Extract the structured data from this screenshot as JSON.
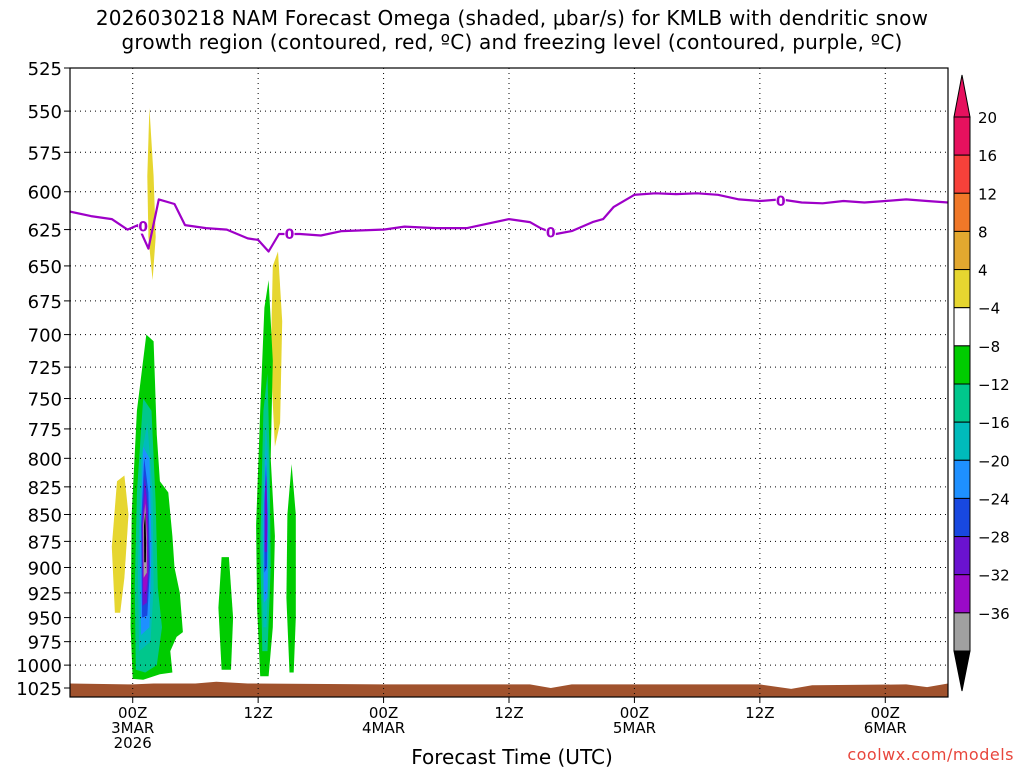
{
  "title": {
    "line1": "2026030218 NAM Forecast Omega (shaded, μbar/s) for KMLB with dendritic snow",
    "line2": "growth region (contoured, red, ºC) and freezing level (contoured, purple, ºC)"
  },
  "credit": "coolwx.com/models",
  "chart_data": {
    "type": "heatmap",
    "title": "2026030218 NAM Forecast Omega (shaded, μbar/s) for KMLB with dendritic snow growth region (contoured, red, ºC) and freezing level (contoured, purple, ºC)",
    "xlabel": "Forecast Time (UTC)",
    "ylabel": "",
    "x_unit": "hours from 2026-03-02 18Z",
    "xlim": [
      0,
      84
    ],
    "ylim": [
      1035,
      525
    ],
    "y_scale": "log-pressure",
    "grid": true,
    "x_ticks": [
      {
        "hour": 6,
        "lines": [
          "00Z",
          "3MAR",
          "2026"
        ]
      },
      {
        "hour": 18,
        "lines": [
          "12Z"
        ]
      },
      {
        "hour": 30,
        "lines": [
          "00Z",
          "4MAR"
        ]
      },
      {
        "hour": 42,
        "lines": [
          "12Z"
        ]
      },
      {
        "hour": 54,
        "lines": [
          "00Z",
          "5MAR"
        ]
      },
      {
        "hour": 66,
        "lines": [
          "12Z"
        ]
      },
      {
        "hour": 78,
        "lines": [
          "00Z",
          "6MAR"
        ]
      }
    ],
    "y_ticks": [
      525,
      550,
      575,
      600,
      625,
      650,
      675,
      700,
      725,
      750,
      775,
      800,
      825,
      850,
      875,
      900,
      925,
      950,
      975,
      1000,
      1025
    ],
    "colorbar": {
      "labels": [
        "20",
        "16",
        "12",
        "8",
        "4",
        "−4",
        "−8",
        "−12",
        "−16",
        "−20",
        "−24",
        "−28",
        "−32",
        "−36"
      ],
      "colors": [
        "#e6115e",
        "#f7413a",
        "#f07828",
        "#e3a82f",
        "#e6d630",
        "#ffffff",
        "#00cc00",
        "#00c78c",
        "#00bbbb",
        "#1e90ff",
        "#1848e0",
        "#6a12d0",
        "#9a0ac8",
        "#a0a0a0"
      ],
      "top_color": "#e6115e",
      "bottom_color": "#000000"
    },
    "freezing_level": {
      "color": "#9e00c8",
      "label": "0",
      "label_points": [
        [
          7,
          623
        ],
        [
          21,
          628
        ],
        [
          46,
          627
        ],
        [
          68,
          606
        ]
      ],
      "points": [
        [
          0,
          613
        ],
        [
          2,
          616
        ],
        [
          4,
          618
        ],
        [
          5.5,
          625
        ],
        [
          6.5,
          622
        ],
        [
          7.5,
          638
        ],
        [
          8.5,
          605
        ],
        [
          10,
          608
        ],
        [
          11,
          622
        ],
        [
          13,
          624
        ],
        [
          15,
          625
        ],
        [
          17,
          631
        ],
        [
          18,
          632
        ],
        [
          19,
          640
        ],
        [
          20,
          628
        ],
        [
          22,
          628
        ],
        [
          24,
          629
        ],
        [
          26,
          626
        ],
        [
          30,
          625
        ],
        [
          32,
          623
        ],
        [
          35,
          624
        ],
        [
          38,
          624
        ],
        [
          40,
          621
        ],
        [
          42,
          618
        ],
        [
          44,
          620
        ],
        [
          45,
          624
        ],
        [
          46.5,
          628
        ],
        [
          48,
          626
        ],
        [
          50,
          620
        ],
        [
          51,
          618
        ],
        [
          52,
          610
        ],
        [
          54,
          602
        ],
        [
          56,
          601
        ],
        [
          58,
          601.5
        ],
        [
          60,
          601
        ],
        [
          62,
          602
        ],
        [
          64,
          605
        ],
        [
          66,
          606
        ],
        [
          68,
          605
        ],
        [
          70,
          607
        ],
        [
          72,
          607.5
        ],
        [
          74,
          606
        ],
        [
          76,
          607
        ],
        [
          78,
          606
        ],
        [
          80,
          605
        ],
        [
          82,
          606
        ],
        [
          84,
          607
        ]
      ]
    },
    "omega_regions": [
      {
        "color": "#e6d630",
        "points": [
          [
            7.6,
            548
          ],
          [
            8.0,
            590
          ],
          [
            8.2,
            630
          ],
          [
            7.9,
            660
          ],
          [
            7.5,
            630
          ],
          [
            7.4,
            590
          ]
        ]
      },
      {
        "color": "#e6d630",
        "points": [
          [
            4.3,
            945
          ],
          [
            4.0,
            880
          ],
          [
            4.5,
            820
          ],
          [
            5.2,
            815
          ],
          [
            5.6,
            850
          ],
          [
            5.2,
            910
          ],
          [
            4.8,
            945
          ]
        ]
      },
      {
        "color": "#e6d630",
        "points": [
          [
            19.6,
            790
          ],
          [
            19.2,
            720
          ],
          [
            19.4,
            650
          ],
          [
            19.9,
            640
          ],
          [
            20.3,
            690
          ],
          [
            20.1,
            770
          ]
        ]
      },
      {
        "color": "#00cc00",
        "points": [
          [
            6.0,
            1015
          ],
          [
            5.8,
            960
          ],
          [
            5.9,
            850
          ],
          [
            6.4,
            760
          ],
          [
            7.3,
            700
          ],
          [
            8.0,
            705
          ],
          [
            8.3,
            780
          ],
          [
            8.6,
            820
          ],
          [
            9.4,
            830
          ],
          [
            9.8,
            870
          ],
          [
            10.0,
            900
          ],
          [
            10.5,
            925
          ],
          [
            10.8,
            965
          ],
          [
            10.2,
            970
          ],
          [
            9.6,
            985
          ],
          [
            9.8,
            1008
          ],
          [
            8.6,
            1010
          ],
          [
            7.0,
            1016
          ]
        ]
      },
      {
        "color": "#00cc00",
        "points": [
          [
            14.5,
            1005
          ],
          [
            14.2,
            940
          ],
          [
            14.5,
            890
          ],
          [
            15.2,
            890
          ],
          [
            15.6,
            950
          ],
          [
            15.4,
            1005
          ]
        ]
      },
      {
        "color": "#00cc00",
        "points": [
          [
            18.2,
            1012
          ],
          [
            17.9,
            940
          ],
          [
            17.8,
            860
          ],
          [
            18.2,
            760
          ],
          [
            18.6,
            680
          ],
          [
            19.0,
            660
          ],
          [
            19.4,
            720
          ],
          [
            19.2,
            800
          ],
          [
            19.6,
            870
          ],
          [
            19.4,
            960
          ],
          [
            19.0,
            1012
          ]
        ]
      },
      {
        "color": "#00cc00",
        "points": [
          [
            21.0,
            1008
          ],
          [
            20.7,
            930
          ],
          [
            20.8,
            850
          ],
          [
            21.2,
            805
          ],
          [
            21.6,
            850
          ],
          [
            21.6,
            950
          ],
          [
            21.4,
            1008
          ]
        ]
      },
      {
        "color": "#00c78c",
        "points": [
          [
            6.3,
            1005
          ],
          [
            6.2,
            920
          ],
          [
            6.4,
            830
          ],
          [
            7.0,
            750
          ],
          [
            7.8,
            760
          ],
          [
            8.2,
            840
          ],
          [
            8.4,
            920
          ],
          [
            8.8,
            960
          ],
          [
            8.3,
            1000
          ],
          [
            7.2,
            1008
          ]
        ]
      },
      {
        "color": "#00c78c",
        "points": [
          [
            18.4,
            985
          ],
          [
            18.2,
            880
          ],
          [
            18.5,
            760
          ],
          [
            18.9,
            730
          ],
          [
            19.1,
            800
          ],
          [
            19.2,
            900
          ],
          [
            18.9,
            985
          ]
        ]
      },
      {
        "color": "#00bbbb",
        "points": [
          [
            6.6,
            985
          ],
          [
            6.5,
            900
          ],
          [
            6.8,
            800
          ],
          [
            7.4,
            770
          ],
          [
            7.9,
            830
          ],
          [
            8.0,
            920
          ],
          [
            7.7,
            975
          ]
        ]
      },
      {
        "color": "#00bbbb",
        "points": [
          [
            18.5,
            960
          ],
          [
            18.4,
            860
          ],
          [
            18.7,
            770
          ],
          [
            19.0,
            800
          ],
          [
            19.0,
            900
          ],
          [
            18.8,
            960
          ]
        ]
      },
      {
        "color": "#1e90ff",
        "points": [
          [
            6.8,
            968
          ],
          [
            6.7,
            880
          ],
          [
            7.0,
            790
          ],
          [
            7.6,
            800
          ],
          [
            7.8,
            880
          ],
          [
            7.6,
            960
          ]
        ]
      },
      {
        "color": "#1e90ff",
        "points": [
          [
            18.55,
            935
          ],
          [
            18.5,
            850
          ],
          [
            18.75,
            790
          ],
          [
            18.95,
            850
          ],
          [
            18.9,
            930
          ]
        ]
      },
      {
        "color": "#1848e0",
        "points": [
          [
            6.9,
            950
          ],
          [
            6.8,
            860
          ],
          [
            7.1,
            800
          ],
          [
            7.5,
            830
          ],
          [
            7.65,
            900
          ],
          [
            7.4,
            948
          ]
        ]
      },
      {
        "color": "#1848e0",
        "points": [
          [
            18.6,
            905
          ],
          [
            18.6,
            840
          ],
          [
            18.75,
            805
          ],
          [
            18.9,
            850
          ],
          [
            18.85,
            900
          ]
        ]
      },
      {
        "color": "#6a12d0",
        "points": [
          [
            6.95,
            938
          ],
          [
            6.9,
            860
          ],
          [
            7.15,
            815
          ],
          [
            7.45,
            845
          ],
          [
            7.55,
            900
          ],
          [
            7.35,
            935
          ]
        ]
      },
      {
        "color": "#6a12d0",
        "points": [
          [
            18.62,
            885
          ],
          [
            18.65,
            830
          ],
          [
            18.8,
            815
          ],
          [
            18.88,
            860
          ],
          [
            18.82,
            885
          ]
        ]
      },
      {
        "color": "#9a0ac8",
        "points": [
          [
            7.0,
            925
          ],
          [
            6.95,
            860
          ],
          [
            7.2,
            830
          ],
          [
            7.4,
            860
          ],
          [
            7.45,
            905
          ],
          [
            7.3,
            922
          ]
        ]
      },
      {
        "color": "#a0a0a0",
        "points": [
          [
            7.05,
            910
          ],
          [
            7.0,
            860
          ],
          [
            7.2,
            840
          ],
          [
            7.35,
            870
          ],
          [
            7.35,
            905
          ]
        ]
      },
      {
        "color": "#000000",
        "points": [
          [
            7.1,
            895
          ],
          [
            7.08,
            860
          ],
          [
            7.2,
            848
          ],
          [
            7.28,
            875
          ],
          [
            7.26,
            895
          ]
        ]
      }
    ],
    "terrain": {
      "color": "#a0522d",
      "points": [
        [
          0,
          1020
        ],
        [
          6,
          1021
        ],
        [
          8,
          1020
        ],
        [
          12,
          1020
        ],
        [
          14,
          1018
        ],
        [
          17,
          1020
        ],
        [
          30,
          1021
        ],
        [
          44,
          1021
        ],
        [
          46,
          1025
        ],
        [
          48,
          1021
        ],
        [
          66,
          1021
        ],
        [
          69,
          1026
        ],
        [
          71,
          1022
        ],
        [
          80,
          1021
        ],
        [
          82,
          1024
        ],
        [
          84,
          1020
        ]
      ]
    }
  }
}
